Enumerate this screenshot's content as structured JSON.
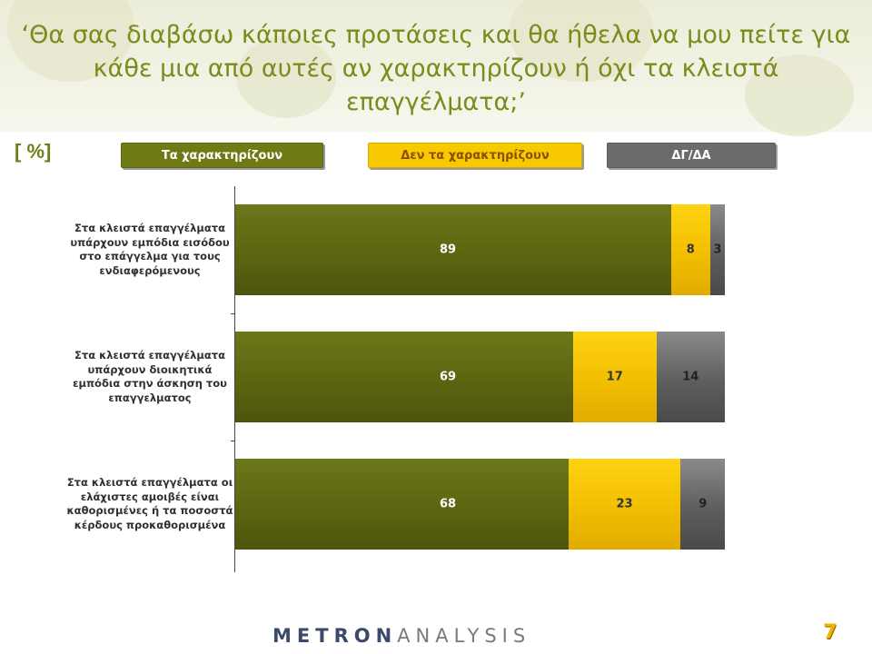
{
  "header": {
    "title": "‘Θα σας διαβάσω κάποιες προτάσεις και θα ήθελα να μου πείτε για κάθε μια από αυτές αν χαρακτηρίζουν ή όχι τα κλειστά επαγγέλματα;’"
  },
  "unit_label": "[ %]",
  "legend": [
    {
      "label": "Τα χαρακτηρίζουν",
      "color": "#6f7a15"
    },
    {
      "label": "Δεν τα χαρακτηρίζουν",
      "color": "#f8c800"
    },
    {
      "label": "ΔΓ/ΔΑ",
      "color": "#6b6b6b"
    }
  ],
  "chart_data": {
    "type": "bar",
    "orientation": "horizontal",
    "stacked": true,
    "categories": [
      "Στα κλειστά επαγγέλματα υπάρχουν εμπόδια εισόδου στο επάγγελμα για τους ενδιαφερόμενους",
      "Στα κλειστά επαγγέλματα υπάρχουν διοικητικά εμπόδια στην άσκηση του επαγγελματος",
      "Στα κλειστά επαγγέλματα οι ελάχιστες αμοιβές είναι καθορισμένες ή τα ποσοστά κέρδους προκαθορισμένα"
    ],
    "series": [
      {
        "name": "Τα χαρακτηρίζουν",
        "values": [
          89,
          69,
          68
        ]
      },
      {
        "name": "Δεν τα χαρακτηρίζουν",
        "values": [
          8,
          17,
          23
        ]
      },
      {
        "name": "ΔΓ/ΔΑ",
        "values": [
          3,
          14,
          9
        ]
      }
    ],
    "xlim": [
      0,
      100
    ],
    "legend_position": "top"
  },
  "footer": {
    "logo_part1": "METRON",
    "logo_part2": "ANALYSIS",
    "page_number": "7"
  }
}
